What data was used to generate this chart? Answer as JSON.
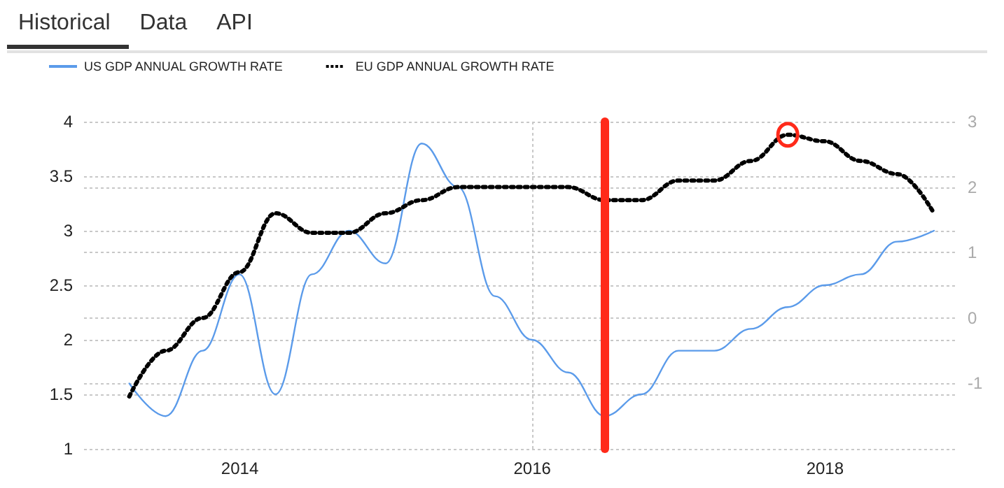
{
  "chart_data": {
    "type": "line",
    "annotations": [
      "Historical",
      "Data",
      "API"
    ],
    "x": [
      "2013-03-31",
      "2013-06-30",
      "2013-09-30",
      "2013-12-31",
      "2014-03-31",
      "2014-06-30",
      "2014-09-30",
      "2014-12-31",
      "2015-03-31",
      "2015-06-30",
      "2015-09-30",
      "2015-12-31",
      "2016-03-31",
      "2016-06-30",
      "2016-09-30",
      "2016-12-31",
      "2017-03-31",
      "2017-06-30",
      "2017-09-30",
      "2017-12-31",
      "2018-03-31",
      "2018-06-30",
      "2018-09-30"
    ],
    "series": [
      {
        "name": "US GDP ANNUAL GROWTH RATE",
        "color": "#5b9bea",
        "line_style": "solid",
        "values": [
          1.6,
          1.3,
          1.9,
          2.6,
          1.5,
          2.6,
          3.0,
          2.7,
          3.8,
          3.4,
          2.4,
          2.0,
          1.7,
          1.3,
          1.5,
          1.9,
          1.9,
          2.1,
          2.3,
          2.5,
          2.6,
          2.9,
          3.0
        ]
      },
      {
        "name": "EU GDP ANNUAL GROWTH RATE",
        "color": "#000000",
        "line_style": "dotted",
        "axis": "y2",
        "values": [
          -1.2,
          -0.5,
          0.0,
          0.7,
          1.6,
          1.3,
          1.3,
          1.6,
          1.8,
          2.0,
          2.0,
          2.0,
          2.0,
          1.8,
          1.8,
          2.1,
          2.1,
          2.4,
          2.8,
          2.7,
          2.4,
          2.2,
          1.6
        ]
      }
    ],
    "xlim": [
      "2012-12-08",
      "2018-11-25"
    ],
    "xticks": [
      {
        "value": "2014",
        "label": "2014"
      },
      {
        "value": "2016",
        "label": "2016"
      },
      {
        "value": "2018",
        "label": "2018"
      }
    ],
    "ylim": [
      1,
      4
    ],
    "yticks": [
      1,
      1.5,
      2,
      2.5,
      3,
      3.5,
      4
    ],
    "y2lim": [
      -2,
      3
    ],
    "y2ticks": [
      {
        "value": -2,
        "label": null
      },
      -1,
      0,
      1,
      2,
      3
    ],
    "ref_lines": [
      {
        "axis": "x",
        "value": "2016-06-30",
        "label": null,
        "color": "#ff2a1a"
      }
    ],
    "grid": true,
    "legend": "top left",
    "marker": "none"
  }
}
